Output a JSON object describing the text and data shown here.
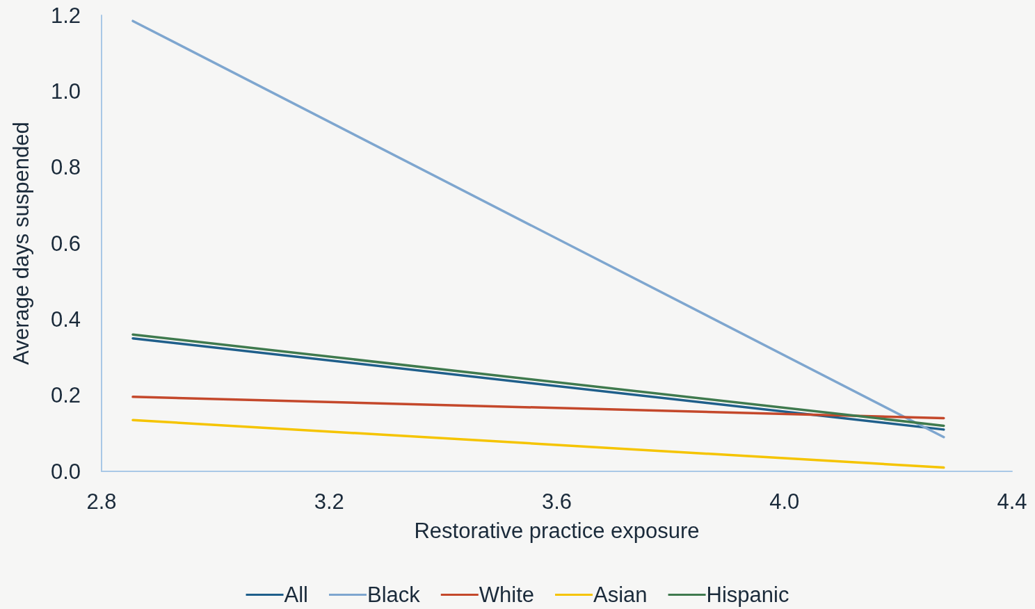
{
  "chart_data": {
    "type": "line",
    "xlabel": "Restorative practice exposure",
    "ylabel": "Average days suspended",
    "xlim": [
      2.8,
      4.4
    ],
    "xticks": [
      2.8,
      3.2,
      3.6,
      {
        "value": 4,
        "label": "4.0"
      },
      4.4
    ],
    "ylim": [
      0,
      1.2
    ],
    "yticks": [
      {
        "value": 0,
        "label": "0.0"
      },
      0.2,
      0.4,
      0.6,
      0.8,
      {
        "value": 1,
        "label": "1.0"
      },
      1.2
    ],
    "x": [
      2.855,
      4.28
    ],
    "grid": false,
    "legend": "bottom",
    "marker": "none",
    "line_style": "solid",
    "series": [
      {
        "name": "All",
        "color": "#1f5f8b",
        "values": [
          0.35,
          0.11
        ]
      },
      {
        "name": "Black",
        "color": "#7ea6cf",
        "values": [
          1.185,
          0.09
        ]
      },
      {
        "name": "White",
        "color": "#c4482b",
        "values": [
          0.196,
          0.14
        ]
      },
      {
        "name": "Asian",
        "color": "#f5c400",
        "values": [
          0.135,
          0.01
        ]
      },
      {
        "name": "Hispanic",
        "color": "#3f7a4e",
        "values": [
          0.36,
          0.12
        ]
      }
    ]
  }
}
